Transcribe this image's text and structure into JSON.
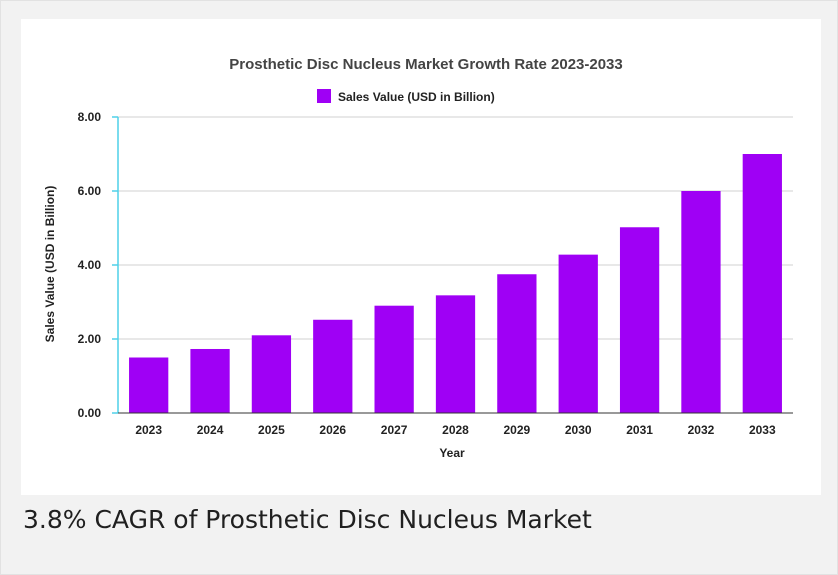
{
  "caption": "3.8% CAGR of Prosthetic Disc Nucleus Market",
  "chart_data": {
    "type": "bar",
    "title": "Prosthetic Disc Nucleus Market Growth Rate 2023-2033",
    "xlabel": "Year",
    "ylabel": "Sales Value (USD in Billion)",
    "categories": [
      "2023",
      "2024",
      "2025",
      "2026",
      "2027",
      "2028",
      "2029",
      "2030",
      "2031",
      "2032",
      "2033"
    ],
    "series": [
      {
        "name": "Sales Value (USD in Billion)",
        "values": [
          1.5,
          1.73,
          2.1,
          2.52,
          2.9,
          3.18,
          3.75,
          4.28,
          5.02,
          6.0,
          7.0
        ],
        "color": "#9f00f5"
      }
    ],
    "ylim": [
      0,
      8
    ],
    "yticks": [
      "0.00",
      "2.00",
      "4.00",
      "6.00",
      "8.00"
    ],
    "ytick_values": [
      0,
      2,
      4,
      6,
      8
    ],
    "grid": true,
    "legend": "top-center"
  }
}
